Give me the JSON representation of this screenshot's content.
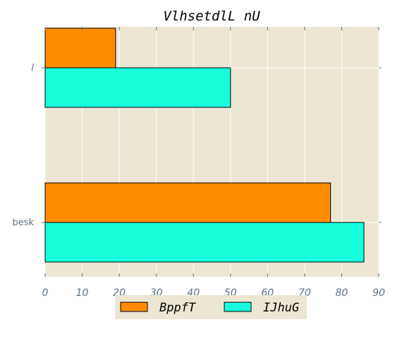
{
  "chart_data": {
    "type": "bar",
    "orientation": "horizontal",
    "title": "Vlhsetdl​L  nU",
    "categories": [
      "besk",
      "l"
    ],
    "series": [
      {
        "name": "BppfT",
        "values": [
          77,
          19
        ],
        "color": "#ff8c00"
      },
      {
        "name": "IJhuG",
        "values": [
          86,
          50
        ],
        "color": "#19ffde"
      }
    ],
    "xlim": [
      0,
      90
    ],
    "xticks": [
      0,
      10,
      20,
      30,
      40,
      50,
      60,
      70,
      80,
      90
    ],
    "xlabel": "",
    "ylabel": "",
    "grid": true,
    "legend_position": "bottom-center",
    "background": "#ede6d4"
  }
}
